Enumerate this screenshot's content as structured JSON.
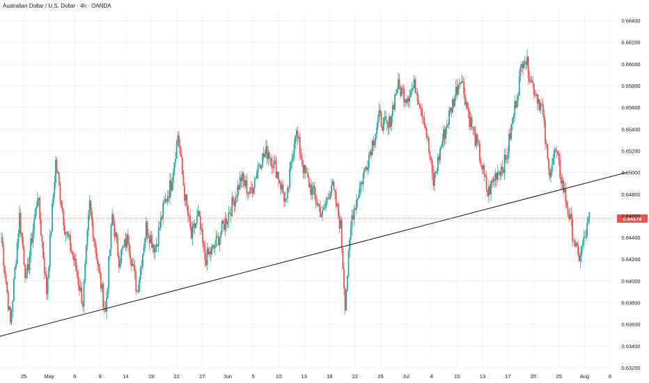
{
  "header": {
    "title": "Australian Dollar / U.S. Dollar · 4h · OANDA"
  },
  "colors": {
    "up": "#26a69a",
    "down": "#ef5350",
    "trendline": "#131722",
    "price_line": "#ef5350",
    "grid": "#f0f3fa",
    "text": "#131722"
  },
  "chart_data": {
    "type": "candlestick",
    "instrument": "AUDUSD",
    "timeframe": "4h",
    "ylim": [
      0.632,
      0.665
    ],
    "y_ticks": [
      "0.66400",
      "0.66200",
      "0.66000",
      "0.65800",
      "0.65600",
      "0.65400",
      "0.65200",
      "0.65000",
      "0.64800",
      "0.64600",
      "0.64400",
      "0.64200",
      "0.64000",
      "0.63800",
      "0.63600",
      "0.63400",
      "0.63200"
    ],
    "x_ticks": [
      "25",
      "May",
      "6",
      "9",
      "14",
      "19",
      "22",
      "27",
      "Jun",
      "5",
      "10",
      "13",
      "18",
      "22",
      "26",
      "Jul",
      "4",
      "10",
      "13",
      "17",
      "20",
      "25",
      "Aug",
      "6"
    ],
    "last_price": "0.64575",
    "last_price_value": 0.64575,
    "trendline": {
      "start": 0.6349,
      "end": 0.65
    },
    "swing_points": [
      [
        0,
        0.644
      ],
      [
        8,
        0.636
      ],
      [
        16,
        0.646
      ],
      [
        22,
        0.64
      ],
      [
        32,
        0.648
      ],
      [
        40,
        0.639
      ],
      [
        48,
        0.651
      ],
      [
        56,
        0.645
      ],
      [
        64,
        0.642
      ],
      [
        72,
        0.638
      ],
      [
        78,
        0.647
      ],
      [
        86,
        0.641
      ],
      [
        92,
        0.637
      ],
      [
        98,
        0.646
      ],
      [
        104,
        0.642
      ],
      [
        112,
        0.644
      ],
      [
        120,
        0.639
      ],
      [
        128,
        0.645
      ],
      [
        136,
        0.643
      ],
      [
        144,
        0.647
      ],
      [
        150,
        0.649
      ],
      [
        156,
        0.6535
      ],
      [
        162,
        0.648
      ],
      [
        168,
        0.644
      ],
      [
        174,
        0.646
      ],
      [
        180,
        0.642
      ],
      [
        188,
        0.643
      ],
      [
        196,
        0.645
      ],
      [
        204,
        0.647
      ],
      [
        212,
        0.6495
      ],
      [
        220,
        0.648
      ],
      [
        228,
        0.651
      ],
      [
        236,
        0.652
      ],
      [
        244,
        0.65
      ],
      [
        252,
        0.647
      ],
      [
        260,
        0.654
      ],
      [
        268,
        0.65
      ],
      [
        276,
        0.648
      ],
      [
        284,
        0.646
      ],
      [
        292,
        0.649
      ],
      [
        300,
        0.645
      ],
      [
        304,
        0.638
      ],
      [
        310,
        0.646
      ],
      [
        318,
        0.649
      ],
      [
        326,
        0.652
      ],
      [
        334,
        0.655
      ],
      [
        342,
        0.654
      ],
      [
        350,
        0.658
      ],
      [
        358,
        0.657
      ],
      [
        366,
        0.658
      ],
      [
        374,
        0.655
      ],
      [
        382,
        0.649
      ],
      [
        390,
        0.653
      ],
      [
        398,
        0.656
      ],
      [
        406,
        0.659
      ],
      [
        414,
        0.655
      ],
      [
        422,
        0.652
      ],
      [
        430,
        0.648
      ],
      [
        438,
        0.65
      ],
      [
        446,
        0.651
      ],
      [
        454,
        0.656
      ],
      [
        462,
        0.661
      ],
      [
        470,
        0.658
      ],
      [
        478,
        0.656
      ],
      [
        484,
        0.65
      ],
      [
        490,
        0.652
      ],
      [
        498,
        0.648
      ],
      [
        504,
        0.645
      ],
      [
        510,
        0.642
      ],
      [
        515,
        0.6435
      ],
      [
        520,
        0.6458
      ]
    ]
  }
}
